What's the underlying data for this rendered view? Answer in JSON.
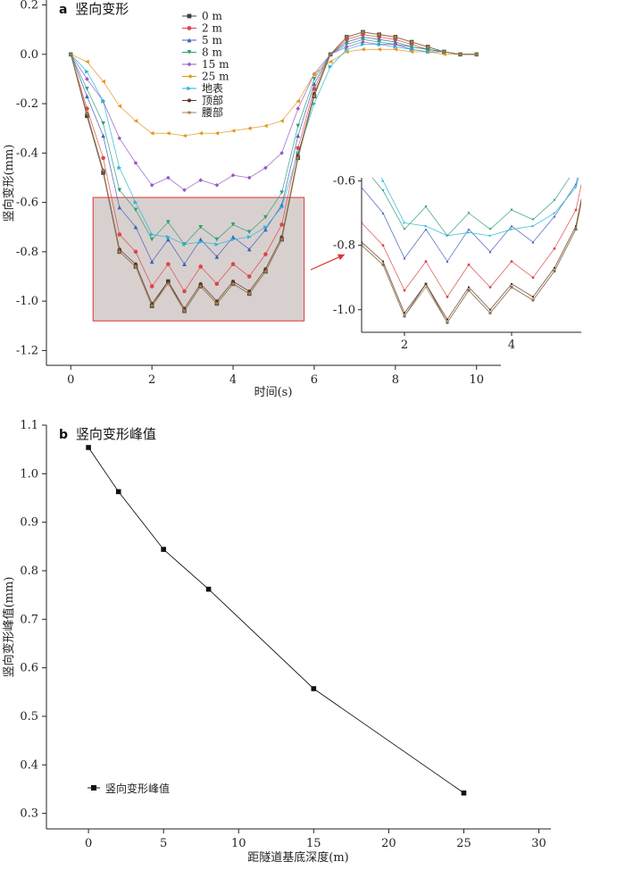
{
  "chart_data": [
    {
      "type": "line",
      "panel": "a",
      "title": "竖向变形",
      "xlabel": "时间(s)",
      "ylabel": "竖向变形(mm)",
      "xlim": [
        -0.6,
        10.6
      ],
      "ylim": [
        -1.26,
        0.22
      ],
      "xticks": [
        0,
        2,
        4,
        6,
        8,
        10
      ],
      "yticks": [
        0.2,
        0.0,
        -0.2,
        -0.4,
        -0.6,
        -0.8,
        -1.0,
        -1.2
      ],
      "ytick_labels": [
        "0.2",
        "0.0",
        "-0.2",
        "-0.4",
        "-0.6",
        "-0.8",
        "-1.0",
        "-1.2"
      ],
      "legend_position": "top-center",
      "x": [
        0,
        0.4,
        0.8,
        1.2,
        1.6,
        2.0,
        2.4,
        2.8,
        3.2,
        3.6,
        4.0,
        4.4,
        4.8,
        5.2,
        5.6,
        6.0,
        6.4,
        6.8,
        7.2,
        7.6,
        8.0,
        8.4,
        8.8,
        9.2,
        9.6,
        10.0
      ],
      "series": [
        {
          "name": "0 m",
          "color": "#404040",
          "marker": "square",
          "values": [
            0,
            -0.25,
            -0.48,
            -0.8,
            -0.86,
            -1.02,
            -0.92,
            -1.04,
            -0.94,
            -1.01,
            -0.93,
            -0.97,
            -0.88,
            -0.75,
            -0.42,
            -0.17,
            0.0,
            0.07,
            0.09,
            0.08,
            0.07,
            0.05,
            0.03,
            0.01,
            0.0,
            0.0
          ]
        },
        {
          "name": "2 m",
          "color": "#d94848",
          "marker": "circle",
          "values": [
            0,
            -0.22,
            -0.42,
            -0.73,
            -0.8,
            -0.94,
            -0.85,
            -0.96,
            -0.86,
            -0.93,
            -0.85,
            -0.9,
            -0.81,
            -0.69,
            -0.38,
            -0.14,
            0.0,
            0.06,
            0.08,
            0.07,
            0.06,
            0.04,
            0.02,
            0.01,
            0.0,
            0.0
          ]
        },
        {
          "name": "5 m",
          "color": "#3d5fb8",
          "marker": "triangle-up",
          "values": [
            0,
            -0.17,
            -0.33,
            -0.62,
            -0.7,
            -0.84,
            -0.75,
            -0.85,
            -0.75,
            -0.82,
            -0.74,
            -0.79,
            -0.71,
            -0.61,
            -0.33,
            -0.12,
            0.0,
            0.05,
            0.07,
            0.06,
            0.05,
            0.03,
            0.02,
            0.01,
            0.0,
            0.0
          ]
        },
        {
          "name": "8 m",
          "color": "#2f9e74",
          "marker": "triangle-down",
          "values": [
            0,
            -0.14,
            -0.28,
            -0.55,
            -0.63,
            -0.75,
            -0.68,
            -0.77,
            -0.7,
            -0.75,
            -0.69,
            -0.72,
            -0.66,
            -0.56,
            -0.29,
            -0.1,
            0.0,
            0.04,
            0.06,
            0.05,
            0.04,
            0.03,
            0.02,
            0.01,
            0.0,
            0.0
          ]
        },
        {
          "name": "15 m",
          "color": "#9a55c7",
          "marker": "diamond",
          "values": [
            0,
            -0.1,
            -0.19,
            -0.34,
            -0.44,
            -0.53,
            -0.5,
            -0.55,
            -0.51,
            -0.53,
            -0.49,
            -0.5,
            -0.46,
            -0.4,
            -0.22,
            -0.08,
            0.0,
            0.03,
            0.05,
            0.04,
            0.04,
            0.02,
            0.01,
            0.01,
            0.0,
            0.0
          ]
        },
        {
          "name": "25 m",
          "color": "#e3961f",
          "marker": "triangle-left",
          "values": [
            0,
            -0.03,
            -0.11,
            -0.21,
            -0.27,
            -0.32,
            -0.32,
            -0.33,
            -0.32,
            -0.32,
            -0.31,
            -0.3,
            -0.29,
            -0.27,
            -0.19,
            -0.08,
            -0.03,
            0.01,
            0.02,
            0.02,
            0.02,
            0.01,
            0.01,
            0.0,
            0.0,
            0.0
          ]
        },
        {
          "name": "地表",
          "color": "#26b5d6",
          "marker": "triangle-right",
          "values": [
            0,
            -0.07,
            -0.19,
            -0.46,
            -0.6,
            -0.73,
            -0.74,
            -0.77,
            -0.76,
            -0.77,
            -0.75,
            -0.74,
            -0.7,
            -0.62,
            -0.4,
            -0.2,
            -0.05,
            0.02,
            0.04,
            0.04,
            0.03,
            0.02,
            0.01,
            0.01,
            0.0,
            0.0
          ]
        },
        {
          "name": "顶部",
          "color": "#5e3320",
          "marker": "hexagon",
          "values": [
            0,
            -0.24,
            -0.47,
            -0.79,
            -0.85,
            -1.01,
            -0.92,
            -1.03,
            -0.93,
            -1.0,
            -0.92,
            -0.96,
            -0.87,
            -0.74,
            -0.41,
            -0.16,
            0.0,
            0.07,
            0.09,
            0.08,
            0.07,
            0.05,
            0.03,
            0.01,
            0.0,
            0.0
          ]
        },
        {
          "name": "腰部",
          "color": "#a5834a",
          "marker": "star",
          "values": [
            0,
            -0.24,
            -0.47,
            -0.8,
            -0.86,
            -1.02,
            -0.93,
            -1.04,
            -0.94,
            -1.01,
            -0.93,
            -0.97,
            -0.88,
            -0.75,
            -0.42,
            -0.17,
            0.0,
            0.07,
            0.09,
            0.08,
            0.07,
            0.05,
            0.03,
            0.01,
            0.0,
            0.0
          ]
        }
      ],
      "highlight_box": {
        "x": [
          0.55,
          5.75
        ],
        "y": [
          -1.08,
          -0.58
        ],
        "fill": "#d8d0cf",
        "stroke": "#e05050"
      },
      "inset": {
        "xlim": [
          1.2,
          5.3
        ],
        "ylim": [
          -1.07,
          -0.59
        ],
        "xticks": [
          2,
          4
        ],
        "yticks": [
          -0.6,
          -0.8,
          -1.0
        ],
        "ytick_labels": [
          "-0.6",
          "-0.8",
          "-1.0"
        ],
        "arrow_color": "#e03030"
      }
    },
    {
      "type": "line",
      "panel": "b",
      "title": "竖向变形峰值",
      "xlabel": "距隧道基底深度(m)",
      "ylabel": "竖向变形峰值(mm)",
      "xlim": [
        -2.8,
        30.8
      ],
      "ylim": [
        0.268,
        1.1
      ],
      "xticks": [
        0,
        5,
        10,
        15,
        20,
        25,
        30
      ],
      "yticks": [
        0.3,
        0.4,
        0.5,
        0.6,
        0.7,
        0.8,
        0.9,
        1.0,
        1.1
      ],
      "legend_position": "bottom-left",
      "series": [
        {
          "name": "竖向变形峰值",
          "color": "#111111",
          "marker": "square",
          "x": [
            0,
            2,
            5,
            8,
            15,
            25
          ],
          "values": [
            1.054,
            0.963,
            0.844,
            0.762,
            0.557,
            0.342
          ]
        }
      ]
    }
  ]
}
